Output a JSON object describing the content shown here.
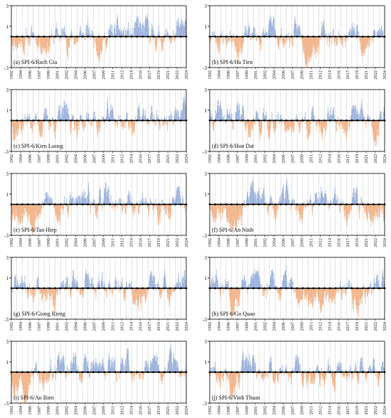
{
  "figure": {
    "y_ticks": [
      3,
      1,
      -3
    ],
    "ylim": [
      -3,
      3
    ],
    "x_ticks": [
      "1992",
      "1994",
      "1996",
      "1997",
      "1999",
      "2001",
      "2002",
      "2004",
      "2006",
      "2007",
      "2009",
      "2011",
      "2012",
      "2014",
      "2016",
      "2017",
      "2019",
      "2021",
      "2022",
      "2024"
    ],
    "colors": {
      "positive": "#9db3dd",
      "negative": "#f1b58c",
      "gridline": "#c8c8c8",
      "axis": "#000000"
    }
  },
  "chart_data": [
    {
      "type": "bar",
      "panel": "a",
      "label": "(a) SPI-6/Rach Gia",
      "ylim": [
        -3,
        3
      ],
      "seed": 11
    },
    {
      "type": "bar",
      "panel": "b",
      "label": "(b) SPI-6/Ha Tien",
      "ylim": [
        -3,
        3
      ],
      "seed": 23
    },
    {
      "type": "bar",
      "panel": "c",
      "label": "(c) SPI-6/Kien Luong",
      "ylim": [
        -3,
        3
      ],
      "seed": 37
    },
    {
      "type": "bar",
      "panel": "d",
      "label": "(d) SPI-6/Hon Dat",
      "ylim": [
        -3,
        3
      ],
      "seed": 41
    },
    {
      "type": "bar",
      "panel": "e",
      "label": "(e) SPI-6/Tan Hiep",
      "ylim": [
        -3,
        3
      ],
      "seed": 53
    },
    {
      "type": "bar",
      "panel": "f",
      "label": "(f) SPI-6/An Ninh",
      "ylim": [
        -3,
        3
      ],
      "seed": 67
    },
    {
      "type": "bar",
      "panel": "g",
      "label": "(g) SPI-6/Giong Rieng",
      "ylim": [
        -3,
        3
      ],
      "seed": 71
    },
    {
      "type": "bar",
      "panel": "h",
      "label": "(h) SPI-6/Go Quao",
      "ylim": [
        -3,
        3
      ],
      "seed": 83
    },
    {
      "type": "bar",
      "panel": "i",
      "label": "(i) SPI-6/An Bien",
      "ylim": [
        -3,
        3
      ],
      "seed": 97
    },
    {
      "type": "bar",
      "panel": "j",
      "label": "(j) SPI-6/Vinh Thuan",
      "ylim": [
        -3,
        3
      ],
      "seed": 101
    }
  ]
}
